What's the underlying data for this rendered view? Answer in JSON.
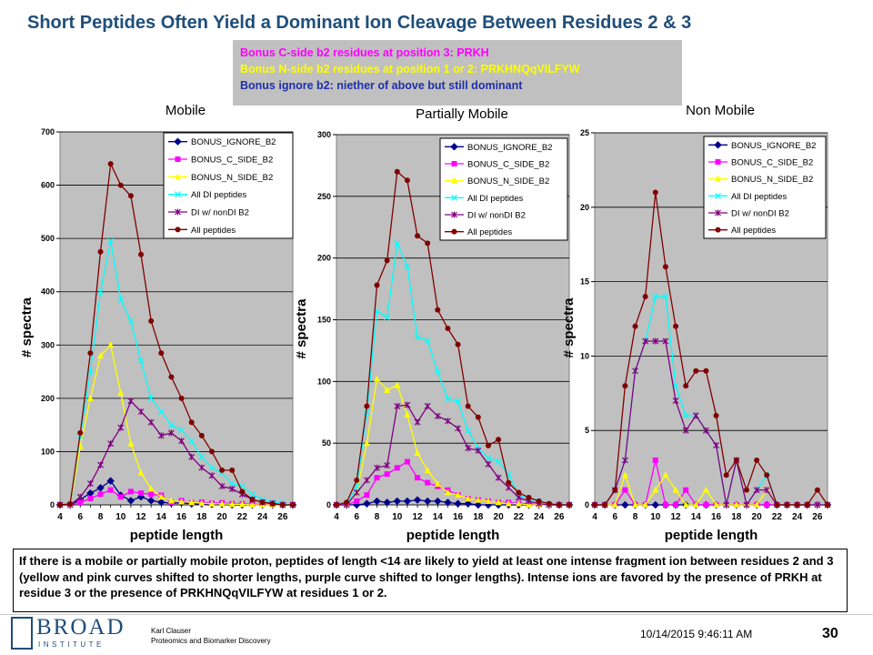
{
  "header": {
    "title": "Short Peptides Often Yield a Dominant Ion Cleavage Between Residues 2 & 3"
  },
  "bonus": {
    "line1": "Bonus C-side b2 residues at position 3: PRKH",
    "line2": "Bonus N-side b2 residues at position 1 or 2: PRKHNQqVILFYW",
    "line3": "Bonus ignore b2: niether of above but still dominant",
    "color1": "#ff00ff",
    "color2": "#ffff00",
    "color3": "#1f2faa"
  },
  "chart_data": [
    {
      "type": "line",
      "title": "Mobile",
      "xlabel": "peptide length",
      "ylabel": "# spectra",
      "ylim": [
        0,
        700
      ],
      "yticks": [
        "0",
        "100",
        "200",
        "300",
        "400",
        "500",
        "600",
        "700"
      ],
      "xticks": [
        "4",
        "6",
        "8",
        "10",
        "12",
        "14",
        "16",
        "18",
        "20",
        "22",
        "24",
        "26"
      ],
      "x": [
        4,
        5,
        6,
        7,
        8,
        9,
        10,
        11,
        12,
        13,
        14,
        15,
        16,
        17,
        18,
        19,
        20,
        21,
        22,
        23,
        24,
        25,
        26,
        27
      ],
      "series": [
        {
          "name": "BONUS_IGNORE_B2",
          "color": "#00008b",
          "marker": "diamond",
          "values": [
            0,
            0,
            10,
            22,
            32,
            45,
            18,
            8,
            15,
            8,
            5,
            3,
            4,
            2,
            2,
            1,
            1,
            0,
            0,
            0,
            0,
            0,
            0,
            0
          ]
        },
        {
          "name": "BONUS_C_SIDE_B2",
          "color": "#ff00ff",
          "marker": "square",
          "values": [
            0,
            0,
            5,
            12,
            20,
            28,
            15,
            25,
            22,
            20,
            18,
            5,
            8,
            4,
            5,
            3,
            4,
            2,
            2,
            1,
            1,
            0,
            0,
            0
          ]
        },
        {
          "name": "BONUS_N_SIDE_B2",
          "color": "#ffff00",
          "marker": "triangle",
          "values": [
            0,
            0,
            110,
            200,
            280,
            300,
            210,
            115,
            60,
            30,
            15,
            8,
            6,
            5,
            3,
            2,
            2,
            1,
            1,
            0,
            0,
            0,
            0,
            0
          ]
        },
        {
          "name": "All DI peptides",
          "color": "#00ffff",
          "marker": "x",
          "values": [
            0,
            0,
            130,
            250,
            400,
            495,
            385,
            345,
            270,
            200,
            175,
            150,
            140,
            120,
            90,
            70,
            60,
            40,
            35,
            20,
            10,
            5,
            3,
            0
          ]
        },
        {
          "name": "DI w/ nonDI B2",
          "color": "#800080",
          "marker": "star",
          "values": [
            0,
            0,
            15,
            40,
            75,
            115,
            145,
            195,
            175,
            155,
            130,
            135,
            120,
            90,
            70,
            55,
            35,
            30,
            20,
            10,
            5,
            3,
            0,
            0
          ]
        },
        {
          "name": "All peptides",
          "color": "#800000",
          "marker": "circle",
          "values": [
            0,
            2,
            135,
            285,
            475,
            640,
            600,
            580,
            470,
            345,
            285,
            240,
            200,
            155,
            130,
            100,
            65,
            65,
            25,
            10,
            5,
            2,
            0,
            0
          ]
        }
      ]
    },
    {
      "type": "line",
      "title": "Partially Mobile",
      "xlabel": "peptide length",
      "ylabel": "# spectra",
      "ylim": [
        0,
        300
      ],
      "yticks": [
        "0",
        "50",
        "100",
        "150",
        "200",
        "250",
        "300"
      ],
      "xticks": [
        "4",
        "6",
        "8",
        "10",
        "12",
        "14",
        "16",
        "18",
        "20",
        "22",
        "24",
        "26"
      ],
      "x": [
        4,
        5,
        6,
        7,
        8,
        9,
        10,
        11,
        12,
        13,
        14,
        15,
        16,
        17,
        18,
        19,
        20,
        21,
        22,
        23,
        24,
        25,
        26,
        27
      ],
      "series": [
        {
          "name": "BONUS_IGNORE_B2",
          "color": "#00008b",
          "marker": "diamond",
          "values": [
            0,
            0,
            0,
            1,
            3,
            2,
            3,
            3,
            4,
            3,
            3,
            2,
            1,
            1,
            0,
            0,
            0,
            0,
            0,
            0,
            0,
            0,
            0,
            0
          ]
        },
        {
          "name": "BONUS_C_SIDE_B2",
          "color": "#ff00ff",
          "marker": "square",
          "values": [
            0,
            0,
            3,
            8,
            22,
            25,
            30,
            35,
            22,
            18,
            15,
            12,
            8,
            5,
            4,
            3,
            2,
            2,
            1,
            1,
            0,
            0,
            0,
            0
          ]
        },
        {
          "name": "BONUS_N_SIDE_B2",
          "color": "#ffff00",
          "marker": "triangle",
          "values": [
            0,
            0,
            10,
            50,
            102,
            93,
            97,
            73,
            42,
            28,
            17,
            10,
            8,
            5,
            4,
            3,
            2,
            1,
            1,
            0,
            0,
            0,
            0,
            0
          ]
        },
        {
          "name": "All DI peptides",
          "color": "#00ffff",
          "marker": "x",
          "values": [
            0,
            0,
            15,
            75,
            157,
            152,
            212,
            193,
            136,
            133,
            108,
            86,
            84,
            60,
            46,
            38,
            35,
            25,
            8,
            5,
            3,
            1,
            0,
            0
          ]
        },
        {
          "name": "DI w/ nonDI B2",
          "color": "#800080",
          "marker": "star",
          "values": [
            0,
            0,
            10,
            20,
            30,
            32,
            80,
            81,
            67,
            80,
            72,
            68,
            62,
            46,
            44,
            33,
            22,
            14,
            6,
            3,
            1,
            0,
            0,
            0
          ]
        },
        {
          "name": "All peptides",
          "color": "#800000",
          "marker": "circle",
          "values": [
            0,
            2,
            20,
            80,
            178,
            198,
            270,
            263,
            218,
            212,
            158,
            143,
            130,
            80,
            71,
            48,
            53,
            18,
            10,
            6,
            3,
            1,
            0,
            0
          ]
        }
      ]
    },
    {
      "type": "line",
      "title": "Non Mobile",
      "xlabel": "peptide length",
      "ylabel": "# spectra",
      "ylim": [
        0,
        25
      ],
      "yticks": [
        "0",
        "5",
        "10",
        "15",
        "20",
        "25"
      ],
      "xticks": [
        "4",
        "6",
        "8",
        "10",
        "12",
        "14",
        "16",
        "18",
        "20",
        "22",
        "24",
        "26"
      ],
      "x": [
        4,
        5,
        6,
        7,
        8,
        9,
        10,
        11,
        12,
        13,
        14,
        15,
        16,
        17,
        18,
        19,
        20,
        21,
        22,
        23,
        24,
        25,
        26,
        27
      ],
      "series": [
        {
          "name": "BONUS_IGNORE_B2",
          "color": "#00008b",
          "marker": "diamond",
          "values": [
            0,
            0,
            0,
            0,
            0,
            0,
            0,
            0,
            0,
            0,
            0,
            0,
            0,
            0,
            0,
            0,
            0,
            0,
            0,
            0,
            0,
            0,
            0,
            0
          ]
        },
        {
          "name": "BONUS_C_SIDE_B2",
          "color": "#ff00ff",
          "marker": "square",
          "values": [
            0,
            0,
            0,
            1,
            0,
            0,
            3,
            0,
            0,
            1,
            0,
            0,
            0,
            0,
            0,
            0,
            0,
            0,
            0,
            0,
            0,
            0,
            0,
            0
          ]
        },
        {
          "name": "BONUS_N_SIDE_B2",
          "color": "#ffff00",
          "marker": "triangle",
          "values": [
            0,
            0,
            0,
            2,
            0,
            0,
            1,
            2,
            1,
            0,
            0,
            1,
            0,
            0,
            0,
            0,
            0,
            1,
            0,
            0,
            0,
            0,
            0,
            0
          ]
        },
        {
          "name": "All DI peptides",
          "color": "#00ffff",
          "marker": "x",
          "values": [
            0,
            0,
            1,
            3,
            9,
            11,
            14,
            14,
            8,
            6,
            6,
            5,
            4,
            0,
            3,
            0,
            1,
            2,
            0,
            0,
            0,
            0,
            0,
            0
          ]
        },
        {
          "name": "DI w/ nonDI B2",
          "color": "#800080",
          "marker": "star",
          "values": [
            0,
            0,
            1,
            3,
            9,
            11,
            11,
            11,
            7,
            5,
            6,
            5,
            4,
            0,
            3,
            0,
            1,
            1,
            0,
            0,
            0,
            0,
            0,
            0
          ]
        },
        {
          "name": "All peptides",
          "color": "#800000",
          "marker": "circle",
          "values": [
            0,
            0,
            1,
            8,
            12,
            14,
            21,
            16,
            12,
            8,
            9,
            9,
            6,
            2,
            3,
            1,
            3,
            2,
            0,
            0,
            0,
            0,
            1,
            0
          ]
        }
      ]
    }
  ],
  "note": {
    "text": "If there is a mobile or partially mobile proton, peptides of length <14 are likely to yield at least one intense fragment ion between residues 2 and 3 (yellow and pink curves shifted to shorter lengths, purple curve shifted to longer lengths). Intense ions are favored by the presence of PRKH at residue 3 or the presence of PRKHNQqVILFYW at residues 1 or 2."
  },
  "footer": {
    "logo_text": "BROAD",
    "logo_sub": "INSTITUTE",
    "author_name": "Karl Clauser",
    "author_dept": "Proteomics and Biomarker Discovery",
    "date": "10/14/2015 9:46:11 AM",
    "page": "30"
  },
  "colors": {
    "plot_bg": "#c0c0c0",
    "title": "#1f4e79"
  }
}
